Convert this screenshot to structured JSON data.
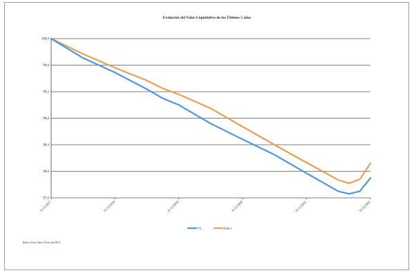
{
  "chart_data": {
    "type": "line",
    "title": "Evolución del Valor Liquidativo de los Últimos 5 años",
    "xlabel": "",
    "ylabel": "",
    "ylim": [
      97.6,
      100.0
    ],
    "yticks": [
      "100,0",
      "99,6",
      "99,2",
      "98,8",
      "98,4",
      "98,0",
      "97,6"
    ],
    "x_tick_labels": [
      "31/12/2017",
      "31/12/2018",
      "31/12/2019",
      "31/12/2020",
      "31/12/2021",
      "31/12/2022"
    ],
    "grid": true,
    "legend_position": "bottom",
    "x": [
      "31/12/2017",
      "30/06/2018",
      "31/12/2018",
      "30/06/2019",
      "30/09/2019",
      "31/12/2019",
      "30/06/2020",
      "31/12/2020",
      "30/06/2021",
      "31/12/2021",
      "30/06/2022",
      "31/08/2022",
      "31/10/2022",
      "31/12/2022"
    ],
    "series": [
      {
        "name": "VL",
        "color": "#4c95e6",
        "values": [
          100.0,
          99.71,
          99.49,
          99.24,
          99.1,
          99.0,
          98.72,
          98.48,
          98.25,
          97.97,
          97.7,
          97.66,
          97.7,
          97.9
        ]
      },
      {
        "name": "Índice",
        "color": "#e8a052",
        "values": [
          100.0,
          99.77,
          99.56,
          99.37,
          99.25,
          99.16,
          98.95,
          98.67,
          98.4,
          98.13,
          97.87,
          97.82,
          97.88,
          98.12
        ]
      }
    ]
  },
  "footnote": "Índice: Euro Short Term rate BCE"
}
